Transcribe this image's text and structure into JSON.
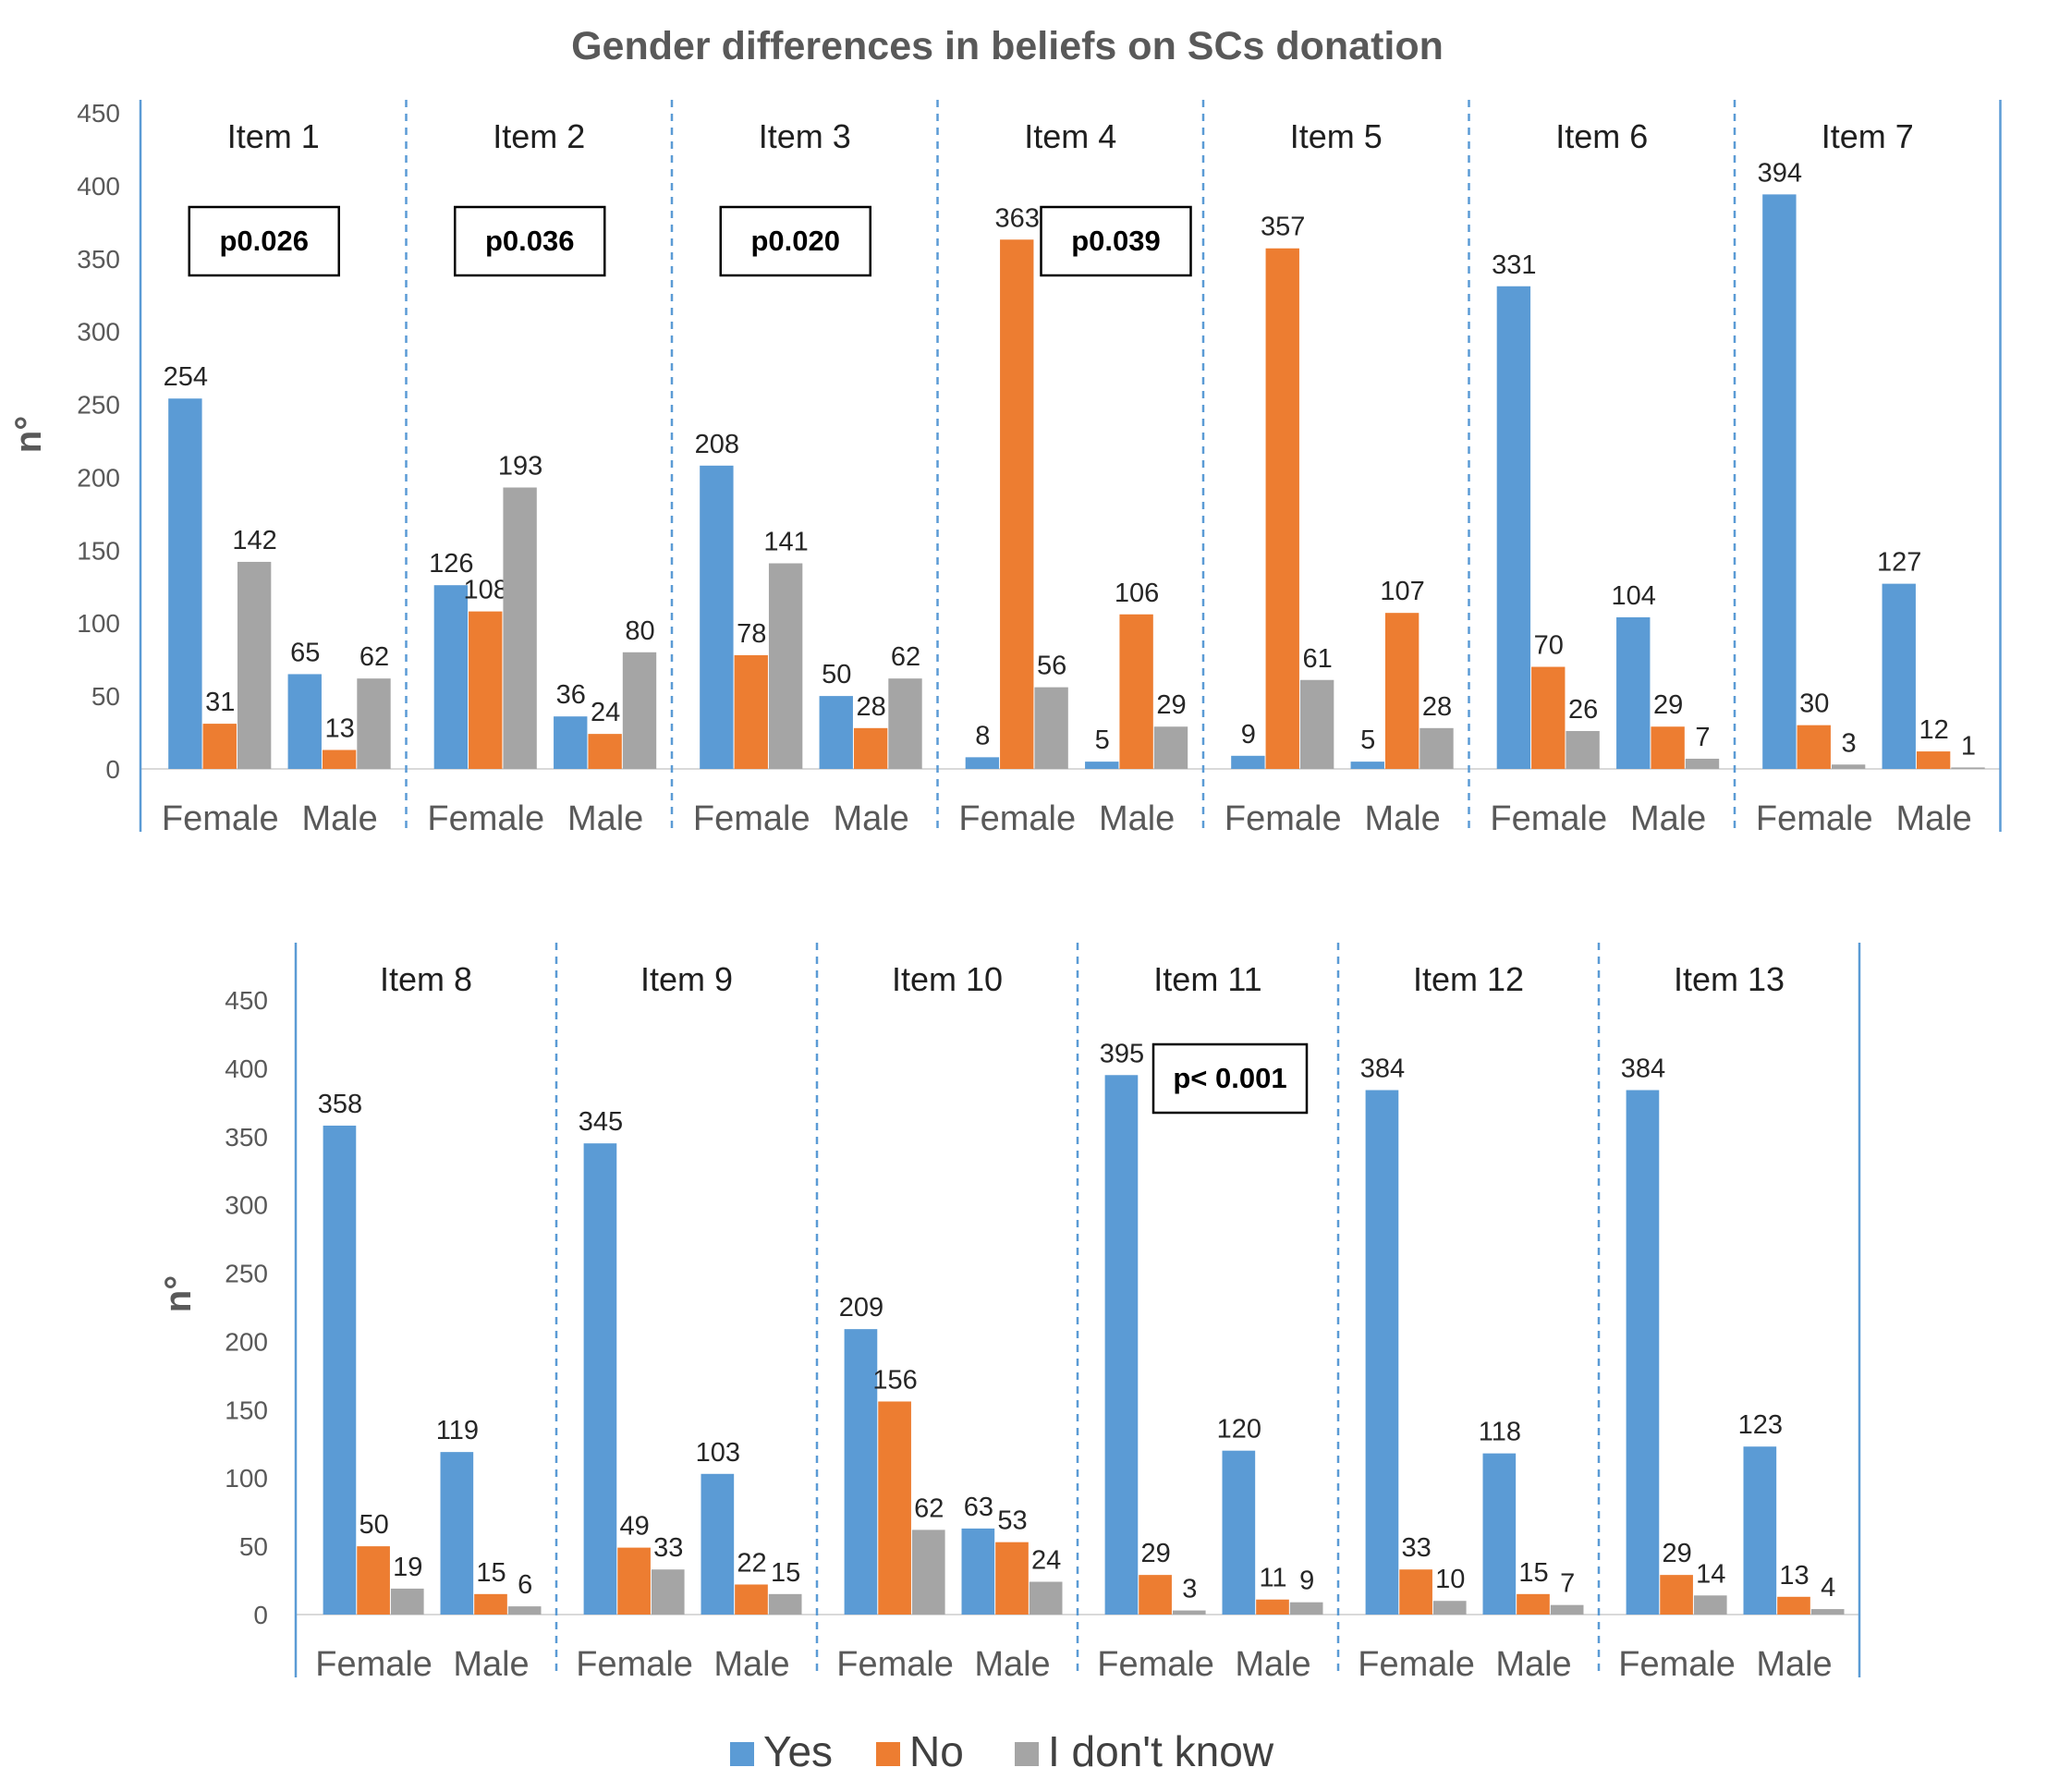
{
  "chart_data": {
    "type": "bar",
    "title": "Gender differences in beliefs on SCs donation",
    "ylabel": "n°",
    "ylim": [
      0,
      450
    ],
    "yticks": [
      0,
      50,
      100,
      150,
      200,
      250,
      300,
      350,
      400,
      450
    ],
    "groups": [
      "Female",
      "Male"
    ],
    "series_names": [
      "Yes",
      "No",
      "I don't know"
    ],
    "colors": {
      "Yes": "#5b9bd5",
      "No": "#ed7d31",
      "I don't know": "#a5a5a5"
    },
    "legend_position": "bottom",
    "panels": [
      {
        "name": "Item 1",
        "p_value": "p0.026",
        "female": [
          254,
          31,
          142
        ],
        "male": [
          65,
          13,
          62
        ]
      },
      {
        "name": "Item 2",
        "p_value": "p0.036",
        "female": [
          126,
          108,
          193
        ],
        "male": [
          36,
          24,
          80
        ]
      },
      {
        "name": "Item 3",
        "p_value": "p0.020",
        "female": [
          208,
          78,
          141
        ],
        "male": [
          50,
          28,
          62
        ]
      },
      {
        "name": "Item 4",
        "p_value": "p0.039",
        "female": [
          8,
          363,
          56
        ],
        "male": [
          5,
          106,
          29
        ]
      },
      {
        "name": "Item 5",
        "p_value": "",
        "female": [
          9,
          357,
          61
        ],
        "male": [
          5,
          107,
          28
        ]
      },
      {
        "name": "Item 6",
        "p_value": "",
        "female": [
          331,
          70,
          26
        ],
        "male": [
          104,
          29,
          7
        ]
      },
      {
        "name": "Item 7",
        "p_value": "",
        "female": [
          394,
          30,
          3
        ],
        "male": [
          127,
          12,
          1
        ]
      },
      {
        "name": "Item 8",
        "p_value": "",
        "female": [
          358,
          50,
          19
        ],
        "male": [
          119,
          15,
          6
        ]
      },
      {
        "name": "Item 9",
        "p_value": "",
        "female": [
          345,
          49,
          33
        ],
        "male": [
          103,
          22,
          15
        ]
      },
      {
        "name": "Item 10",
        "p_value": "",
        "female": [
          209,
          156,
          62
        ],
        "male": [
          63,
          53,
          24
        ]
      },
      {
        "name": "Item 11",
        "p_value": "p< 0.001",
        "female": [
          395,
          29,
          3
        ],
        "male": [
          120,
          11,
          9
        ]
      },
      {
        "name": "Item 12",
        "p_value": "",
        "female": [
          384,
          33,
          10
        ],
        "male": [
          118,
          15,
          7
        ]
      },
      {
        "name": "Item 13",
        "p_value": "",
        "female": [
          384,
          29,
          14
        ],
        "male": [
          123,
          13,
          4
        ]
      }
    ]
  }
}
